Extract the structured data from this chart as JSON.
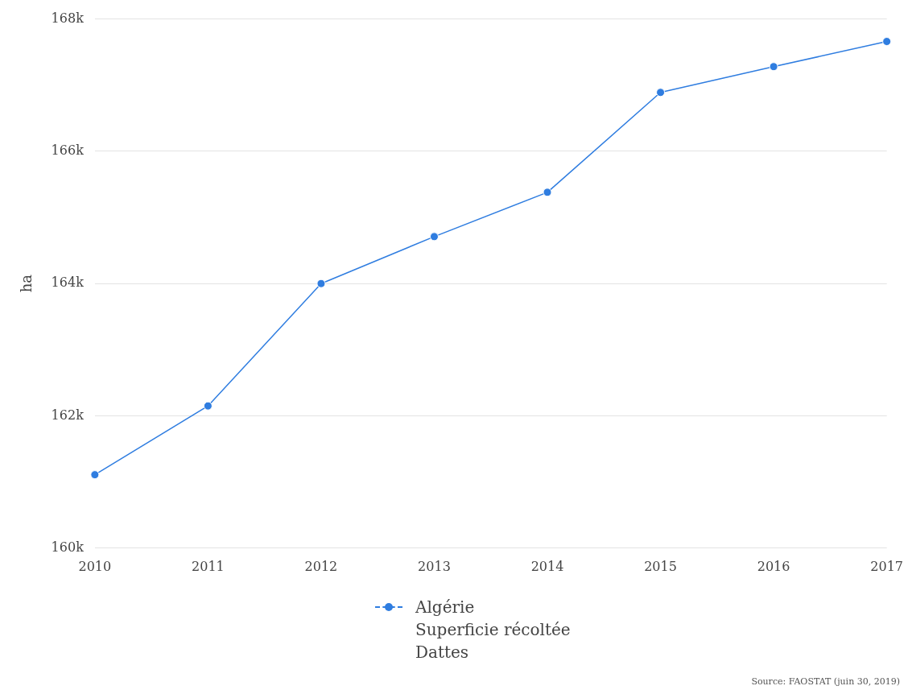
{
  "chart_data": {
    "type": "line",
    "ylabel": "ha",
    "categories": [
      "2010",
      "2011",
      "2012",
      "2013",
      "2014",
      "2015",
      "2016",
      "2017"
    ],
    "series": [
      {
        "name": "Algérie\nSuperficie récoltée\nDattes",
        "color": "#2f7de0",
        "values": [
          161110,
          162150,
          164000,
          164710,
          165380,
          166890,
          167280,
          167660
        ]
      }
    ],
    "ylim": [
      160000,
      168000
    ],
    "yticks": [
      {
        "value": 160000,
        "label": "160k"
      },
      {
        "value": 162000,
        "label": "162k"
      },
      {
        "value": 164000,
        "label": "164k"
      },
      {
        "value": 166000,
        "label": "166k"
      },
      {
        "value": 168000,
        "label": "168k"
      }
    ],
    "grid": "y",
    "legend": "bottom",
    "marker": "circle",
    "line_style": "solid",
    "annotations": [
      "Source: FAOSTAT (juin 30, 2019)"
    ]
  }
}
